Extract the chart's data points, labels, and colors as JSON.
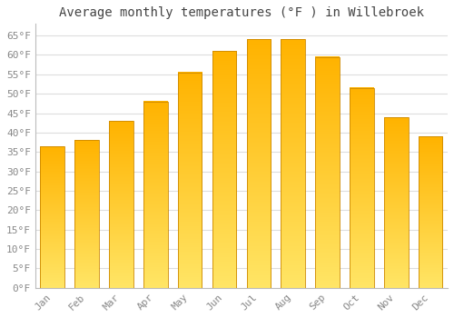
{
  "title": "Average monthly temperatures (°F ) in Willebroek",
  "months": [
    "Jan",
    "Feb",
    "Mar",
    "Apr",
    "May",
    "Jun",
    "Jul",
    "Aug",
    "Sep",
    "Oct",
    "Nov",
    "Dec"
  ],
  "values": [
    36.5,
    38,
    43,
    48,
    55.5,
    61,
    64,
    64,
    59.5,
    51.5,
    44,
    39
  ],
  "bar_color_bottom": "#FFB300",
  "bar_color_top": "#FFD966",
  "bar_edge_color": "#CC8800",
  "background_color": "#FFFFFF",
  "grid_color": "#DDDDDD",
  "ylim": [
    0,
    68
  ],
  "yticks": [
    0,
    5,
    10,
    15,
    20,
    25,
    30,
    35,
    40,
    45,
    50,
    55,
    60,
    65
  ],
  "title_fontsize": 10,
  "tick_fontsize": 8,
  "font_color": "#888888",
  "title_color": "#444444"
}
